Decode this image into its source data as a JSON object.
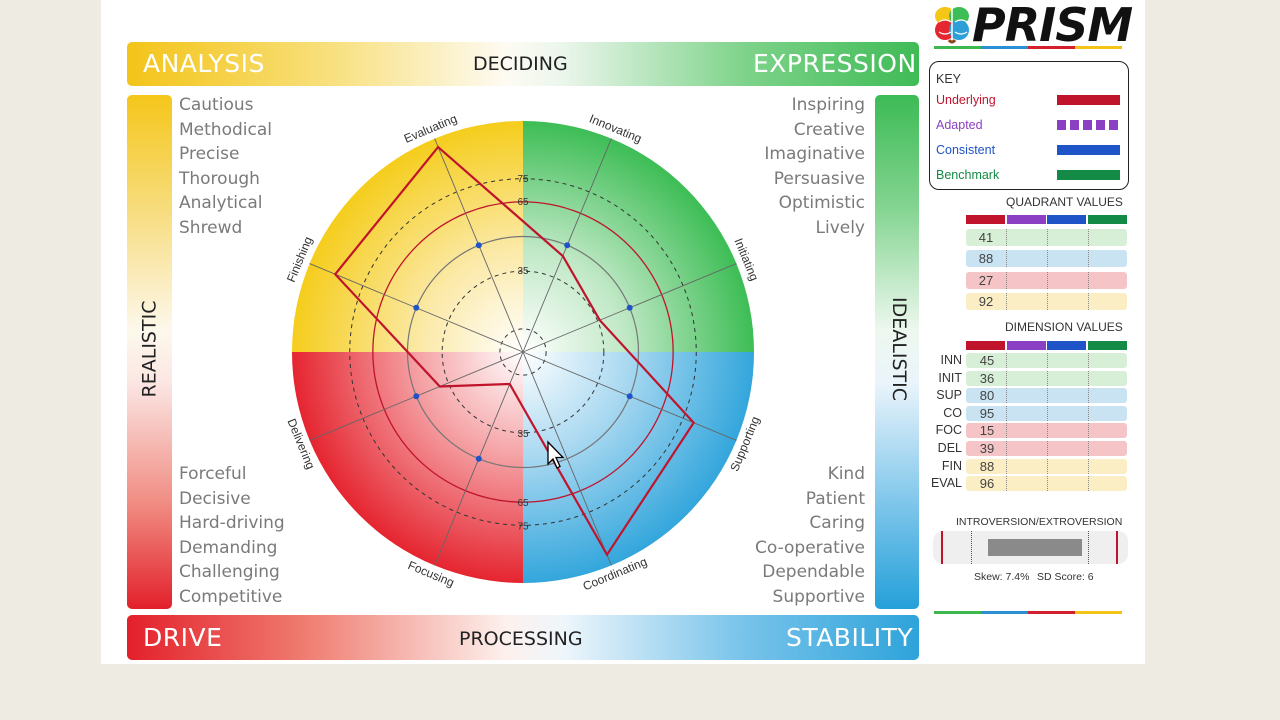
{
  "header": {
    "top_left": "ANALYSIS",
    "top_center": "DECIDING",
    "top_right": "EXPRESSION",
    "bottom_left": "DRIVE",
    "bottom_center": "PROCESSING",
    "bottom_right": "STABILITY",
    "left_side": "REALISTIC",
    "right_side": "IDEALISTIC"
  },
  "logo": {
    "text": "PRISM"
  },
  "traits": {
    "top_left": [
      "Cautious",
      "Methodical",
      "Precise",
      "Thorough",
      "Analytical",
      "Shrewd"
    ],
    "top_right": [
      "Inspiring",
      "Creative",
      "Imaginative",
      "Persuasive",
      "Optimistic",
      "Lively"
    ],
    "bottom_left": [
      "Forceful",
      "Decisive",
      "Hard-driving",
      "Demanding",
      "Challenging",
      "Competitive"
    ],
    "bottom_right": [
      "Kind",
      "Patient",
      "Caring",
      "Co-operative",
      "Dependable",
      "Supportive"
    ]
  },
  "key": {
    "title": "KEY",
    "items": [
      {
        "label": "Underlying",
        "color": "#c0142d",
        "style": "solid"
      },
      {
        "label": "Adapted",
        "color": "#8b3fc2",
        "style": "dashed"
      },
      {
        "label": "Consistent",
        "color": "#1f53c8",
        "style": "solid"
      },
      {
        "label": "Benchmark",
        "color": "#138a45",
        "style": "solid"
      }
    ]
  },
  "quadrant_values": {
    "title": "QUADRANT VALUES",
    "values": [
      "41",
      "88",
      "27",
      "92"
    ]
  },
  "dimension_values": {
    "title": "DIMENSION VALUES",
    "rows": [
      {
        "label": "INN",
        "value": "45"
      },
      {
        "label": "INIT",
        "value": "36"
      },
      {
        "label": "SUP",
        "value": "80"
      },
      {
        "label": "CO",
        "value": "95"
      },
      {
        "label": "FOC",
        "value": "15"
      },
      {
        "label": "DEL",
        "value": "39"
      },
      {
        "label": "FIN",
        "value": "88"
      },
      {
        "label": "EVAL",
        "value": "96"
      }
    ]
  },
  "intro_extro": {
    "title": "INTROVERSION/EXTROVERSION",
    "skew": "Skew: 7.4%",
    "sd": "SD Score: 6"
  },
  "chart_data": {
    "type": "radar",
    "axes": [
      "Evaluating",
      "Innovating",
      "Initiating",
      "Supporting",
      "Coordinating",
      "Focusing",
      "Delivering",
      "Finishing"
    ],
    "ring_labels": [
      "35",
      "65",
      "75"
    ],
    "series": [
      {
        "name": "Underlying",
        "values": [
          96,
          45,
          36,
          80,
          95,
          15,
          39,
          88
        ],
        "color": "#c0142d"
      }
    ],
    "marker_points": [
      {
        "axis": "Innovating",
        "value": 50
      },
      {
        "axis": "Initiating",
        "value": 50
      },
      {
        "axis": "Supporting",
        "value": 50
      },
      {
        "axis": "Focusing",
        "value": 50
      },
      {
        "axis": "Delivering",
        "value": 50
      },
      {
        "axis": "Finishing",
        "value": 50
      },
      {
        "axis": "Evaluating",
        "value": 50
      }
    ],
    "quadrant_colors": {
      "top_left": "#f5cd1c",
      "top_right": "#3dbd55",
      "bottom_left": "#e52530",
      "bottom_right": "#33a6dc"
    }
  }
}
